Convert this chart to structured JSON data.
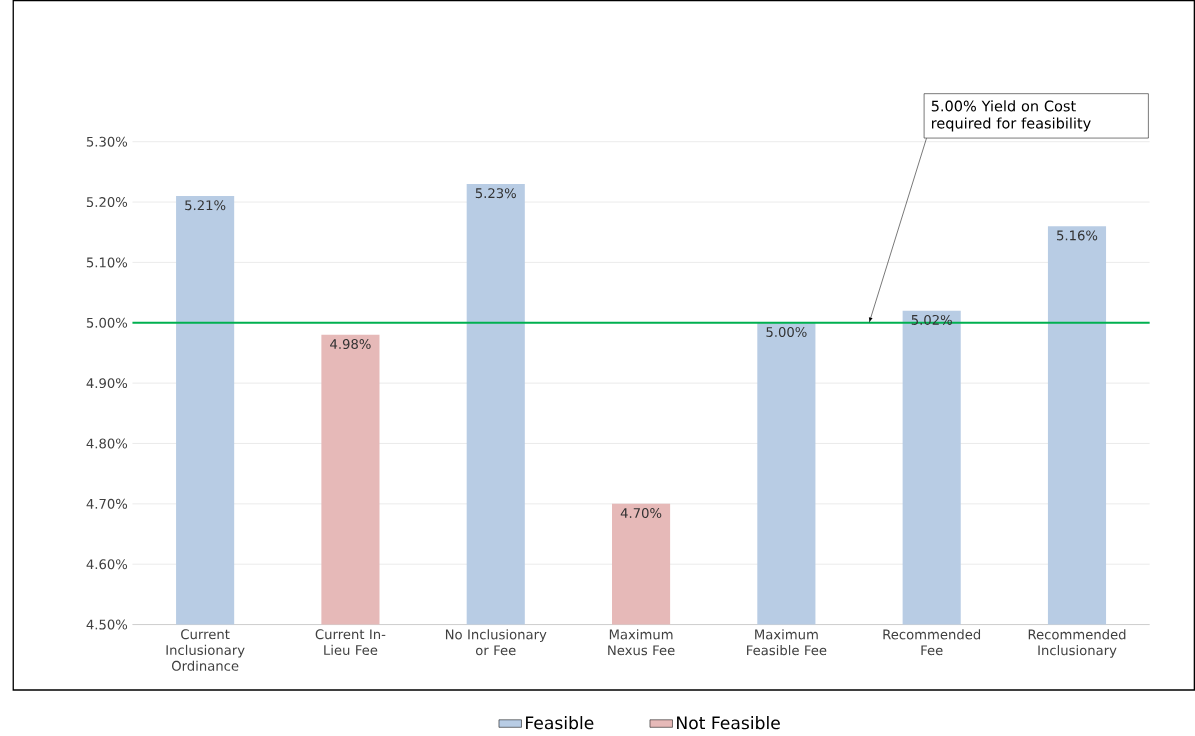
{
  "chart_data": {
    "type": "bar",
    "categories": [
      "Current Inclusionary Ordinance",
      "Current In-Lieu Fee",
      "No Inclusionary or Fee",
      "Maximum Nexus Fee",
      "Maximum Feasible Fee",
      "Recommended Fee",
      "Recommended Inclusionary"
    ],
    "series": [
      {
        "name": "Feasible",
        "color": "#b8cce4",
        "values": [
          5.21,
          null,
          5.23,
          null,
          5.0,
          5.02,
          5.16
        ],
        "value_labels": [
          "5.21%",
          null,
          "5.23%",
          null,
          "5.00%",
          "5.02%",
          "5.16%"
        ]
      },
      {
        "name": "Not Feasible",
        "color": "#e6b9b8",
        "values": [
          null,
          4.98,
          null,
          4.7,
          null,
          null,
          null
        ],
        "value_labels": [
          null,
          "4.98%",
          null,
          "4.70%",
          null,
          null,
          null
        ]
      }
    ],
    "ylim": [
      4.5,
      5.3
    ],
    "yticks": [
      {
        "value": 4.5,
        "label": "4.50%"
      },
      {
        "value": 4.6,
        "label": "4.60%"
      },
      {
        "value": 4.7,
        "label": "4.70%"
      },
      {
        "value": 4.8,
        "label": "4.80%"
      },
      {
        "value": 4.9,
        "label": "4.90%"
      },
      {
        "value": 5.0,
        "label": "5.00%"
      },
      {
        "value": 5.1,
        "label": "5.10%"
      },
      {
        "value": 5.2,
        "label": "5.20%"
      },
      {
        "value": 5.3,
        "label": "5.30%"
      }
    ],
    "ref_lines": [
      {
        "axis": "y",
        "value": 5.0,
        "color": "#00b050",
        "label": "5.00% Yield on Cost required for feasibility"
      }
    ],
    "grid": "y",
    "legend": "bottom"
  }
}
